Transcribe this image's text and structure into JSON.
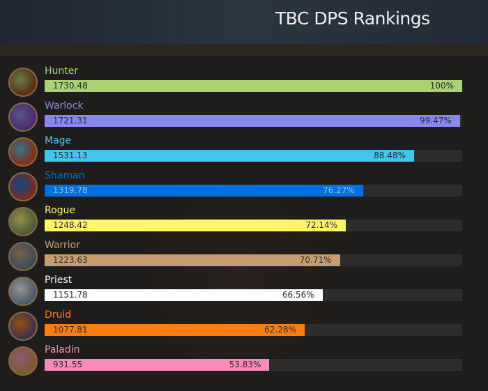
{
  "header": {
    "title": "TBC DPS Rankings"
  },
  "chart_data": {
    "type": "bar",
    "orientation": "horizontal",
    "title": "TBC DPS Rankings",
    "categories": [
      "Hunter",
      "Warlock",
      "Mage",
      "Shaman",
      "Rogue",
      "Warrior",
      "Priest",
      "Druid",
      "Paladin"
    ],
    "values": [
      1730.48,
      1721.31,
      1531.13,
      1319.78,
      1248.42,
      1223.63,
      1151.78,
      1077.81,
      931.55
    ],
    "value_labels": [
      "1730.48",
      "1721.31",
      "1531.13",
      "1319.78",
      "1248.42",
      "1223.63",
      "1151.78",
      "1077.81",
      "931.55"
    ],
    "percent_labels": [
      "100%",
      "99.47%",
      "88.48%",
      "76.27%",
      "72.14%",
      "70.71%",
      "66.56%",
      "62.28%",
      "53.83%"
    ],
    "percents": [
      100,
      99.47,
      88.48,
      76.27,
      72.14,
      70.71,
      66.56,
      62.28,
      53.83
    ],
    "colors": [
      "#a9d271",
      "#8787ed",
      "#40c7eb",
      "#0070de",
      "#fff569",
      "#c79c6e",
      "#ffffff",
      "#ff7d0a",
      "#f58cba"
    ],
    "icons": [
      "hunter-class-icon",
      "warlock-class-icon",
      "mage-class-icon",
      "shaman-class-icon",
      "rogue-class-icon",
      "warrior-class-icon",
      "priest-class-icon",
      "druid-class-icon",
      "paladin-class-icon"
    ],
    "xlim": [
      0,
      100
    ]
  }
}
